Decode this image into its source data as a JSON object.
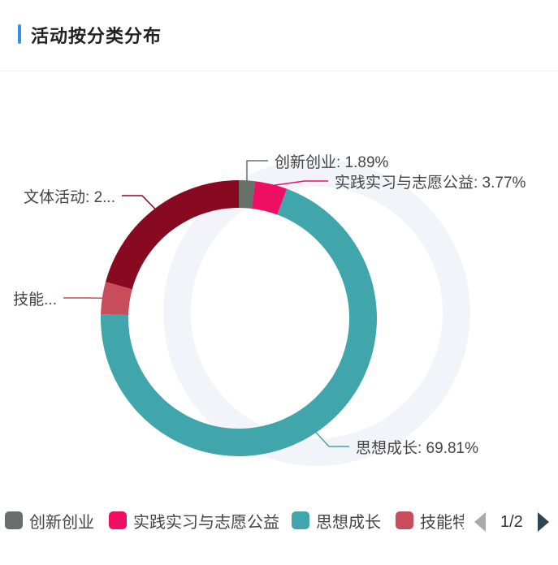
{
  "header": {
    "title": "活动按分类分布"
  },
  "chart_data": {
    "type": "pie",
    "variant": "donut",
    "series": [
      {
        "name": "创新创业",
        "value": 1.89,
        "label": "创新创业: 1.89%",
        "color": "#667069"
      },
      {
        "name": "实践实习与志愿公益",
        "value": 3.77,
        "label": "实践实习与志愿公益: 3.77%",
        "color": "#ee0f63"
      },
      {
        "name": "思想成长",
        "value": 69.81,
        "label": "思想成长: 69.81%",
        "color": "#41a6ab"
      },
      {
        "name": "技能特长",
        "value": 3.77,
        "label": "技能...",
        "color": "#c94c5a"
      },
      {
        "name": "文体活动",
        "value": 20.76,
        "label": "文体活动: 2...",
        "color": "#870a21"
      }
    ],
    "legend_position": "bottom"
  },
  "legend": {
    "items": [
      {
        "label": "创新创业",
        "color": "#667069"
      },
      {
        "label": "实践实习与志愿公益",
        "color": "#ee0f63"
      },
      {
        "label": "思想成长",
        "color": "#41a6ab"
      },
      {
        "label": "技能特",
        "color": "#c94c5a"
      }
    ],
    "page": "1/2"
  },
  "icons": {
    "prev": "caret-left-icon",
    "next": "caret-right-icon"
  }
}
